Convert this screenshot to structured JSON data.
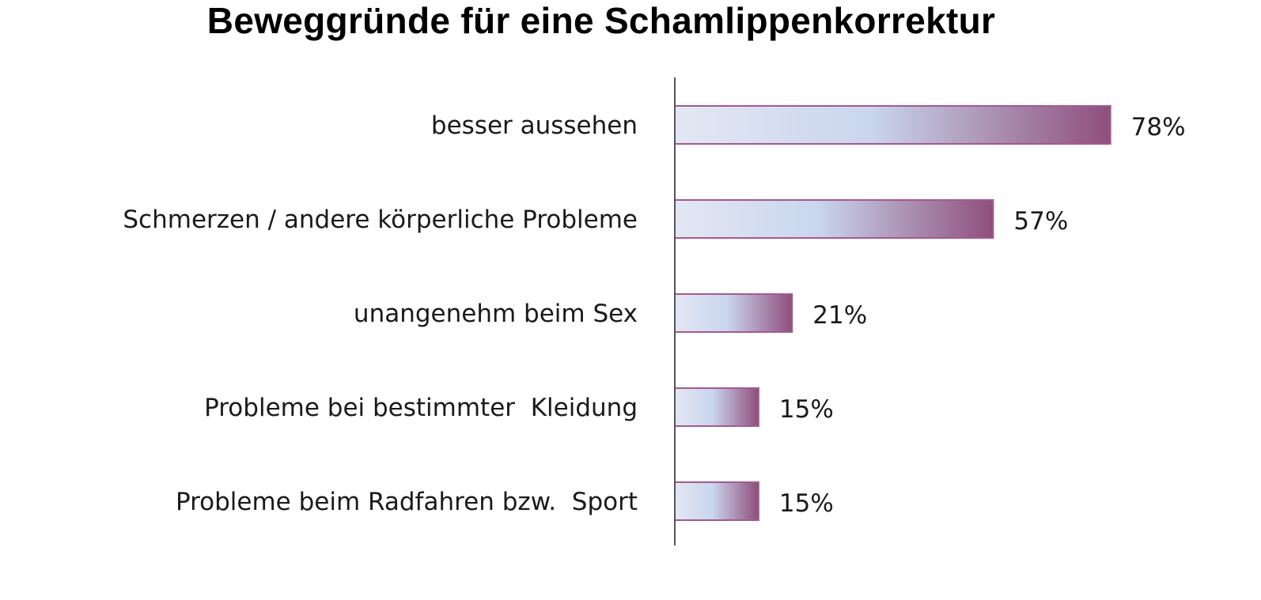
{
  "chart_data": {
    "type": "bar",
    "orientation": "horizontal",
    "title": "Beweggründe für eine Schamlippenkorrektur",
    "categories": [
      "besser aussehen",
      "Schmerzen / andere körperliche Probleme",
      "unangenehm beim Sex",
      "Probleme bei bestimmter  Kleidung",
      "Probleme beim Radfahren bzw.  Sport"
    ],
    "values": [
      78,
      57,
      21,
      15,
      15
    ],
    "value_labels": [
      "78%",
      "57%",
      "21%",
      "15%",
      "15%"
    ],
    "unit": "%",
    "xlim": [
      0,
      100
    ],
    "grid": false,
    "legend": "none",
    "colors": {
      "bar_light": "#e3e7f3",
      "bar_mid": "#c9d6ee",
      "bar_dark": "#8e4e7c",
      "bar_border": "#a8588f",
      "axis": "#555555"
    }
  }
}
